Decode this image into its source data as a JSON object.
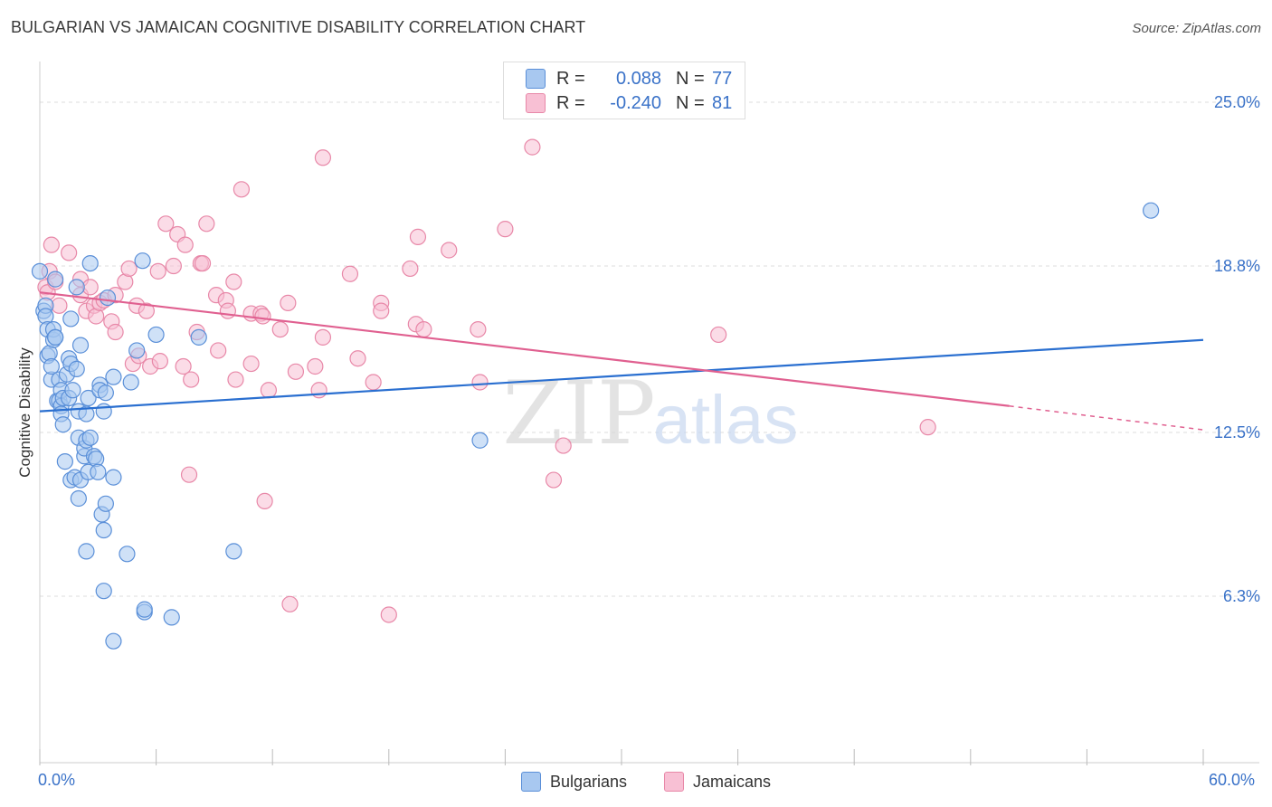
{
  "title": "BULGARIAN VS JAMAICAN COGNITIVE DISABILITY CORRELATION CHART",
  "source": "Source: ZipAtlas.com",
  "watermark": {
    "zip": "ZIP",
    "atlas": "atlas"
  },
  "legend": {
    "r_label": "R =",
    "n_label": "N =",
    "series": [
      {
        "name": "Bulgarians",
        "r": "0.088",
        "n": "77"
      },
      {
        "name": "Jamaicans",
        "r": "-0.240",
        "n": "81"
      }
    ]
  },
  "colors": {
    "blue_fill": "#a8c8f0",
    "blue_stroke": "#5a8fd8",
    "blue_line": "#2a6fd0",
    "pink_fill": "#f8c0d4",
    "pink_stroke": "#e888a8",
    "pink_line": "#e06090",
    "value_text": "#3a72c8",
    "grid": "#dddddd"
  },
  "chart_data": {
    "type": "scatter",
    "title": "BULGARIAN VS JAMAICAN COGNITIVE DISABILITY CORRELATION CHART",
    "xlabel": "",
    "ylabel": "Cognitive Disability",
    "xlim": [
      0,
      60
    ],
    "ylim": [
      0,
      26.3
    ],
    "x_tick_labels": [
      "0.0%",
      "60.0%"
    ],
    "y_ticks": [
      6.3,
      12.5,
      18.8,
      25.0
    ],
    "y_tick_labels": [
      "6.3%",
      "12.5%",
      "18.8%",
      "25.0%"
    ],
    "series": [
      {
        "name": "Bulgarians",
        "trend": {
          "x": [
            0,
            60
          ],
          "y": [
            13.3,
            16.0
          ]
        },
        "points": [
          [
            0.0,
            18.6
          ],
          [
            0.2,
            17.1
          ],
          [
            0.3,
            17.3
          ],
          [
            0.3,
            16.9
          ],
          [
            0.4,
            16.4
          ],
          [
            0.4,
            15.4
          ],
          [
            0.5,
            15.5
          ],
          [
            0.6,
            14.5
          ],
          [
            0.6,
            15.0
          ],
          [
            0.7,
            16.0
          ],
          [
            0.7,
            16.4
          ],
          [
            0.8,
            16.1
          ],
          [
            0.8,
            18.3
          ],
          [
            0.8,
            16.1
          ],
          [
            0.9,
            13.7
          ],
          [
            1.0,
            14.5
          ],
          [
            1.0,
            13.7
          ],
          [
            1.1,
            13.5
          ],
          [
            1.1,
            13.2
          ],
          [
            1.1,
            14.1
          ],
          [
            1.2,
            12.8
          ],
          [
            1.2,
            13.8
          ],
          [
            1.3,
            11.4
          ],
          [
            1.4,
            14.7
          ],
          [
            1.5,
            13.8
          ],
          [
            1.5,
            15.3
          ],
          [
            1.6,
            16.8
          ],
          [
            1.6,
            15.1
          ],
          [
            1.6,
            10.7
          ],
          [
            1.7,
            14.1
          ],
          [
            1.8,
            10.8
          ],
          [
            1.9,
            14.9
          ],
          [
            1.9,
            18.0
          ],
          [
            2.0,
            13.3
          ],
          [
            2.0,
            12.3
          ],
          [
            2.0,
            10.0
          ],
          [
            2.1,
            10.7
          ],
          [
            2.1,
            15.8
          ],
          [
            2.3,
            11.6
          ],
          [
            2.3,
            11.9
          ],
          [
            2.4,
            8.0
          ],
          [
            2.4,
            13.2
          ],
          [
            2.4,
            12.2
          ],
          [
            2.5,
            11.0
          ],
          [
            2.5,
            13.8
          ],
          [
            2.6,
            18.9
          ],
          [
            2.6,
            12.3
          ],
          [
            2.8,
            11.6
          ],
          [
            2.9,
            11.5
          ],
          [
            3.0,
            11.0
          ],
          [
            3.1,
            14.3
          ],
          [
            3.1,
            14.1
          ],
          [
            3.2,
            9.4
          ],
          [
            3.3,
            13.3
          ],
          [
            3.3,
            8.8
          ],
          [
            3.3,
            6.5
          ],
          [
            3.4,
            9.8
          ],
          [
            3.4,
            14.0
          ],
          [
            3.5,
            17.6
          ],
          [
            3.8,
            10.8
          ],
          [
            3.8,
            14.6
          ],
          [
            3.8,
            4.6
          ],
          [
            4.5,
            7.9
          ],
          [
            4.7,
            14.4
          ],
          [
            5.0,
            15.6
          ],
          [
            5.3,
            19.0
          ],
          [
            5.4,
            5.7
          ],
          [
            5.4,
            5.8
          ],
          [
            6.0,
            16.2
          ],
          [
            6.8,
            5.5
          ],
          [
            8.2,
            16.1
          ],
          [
            10.0,
            8.0
          ],
          [
            22.7,
            12.2
          ],
          [
            57.3,
            20.9
          ]
        ]
      },
      {
        "name": "Jamaicans",
        "trend": {
          "x": [
            0,
            50
          ],
          "y": [
            17.8,
            13.5
          ]
        },
        "trend_dashed": {
          "x": [
            50,
            60
          ],
          "y": [
            13.5,
            12.6
          ]
        },
        "points": [
          [
            0.3,
            18.0
          ],
          [
            0.4,
            17.8
          ],
          [
            0.5,
            18.6
          ],
          [
            0.6,
            19.6
          ],
          [
            0.8,
            18.2
          ],
          [
            1.0,
            17.3
          ],
          [
            1.5,
            19.3
          ],
          [
            2.1,
            18.3
          ],
          [
            2.1,
            17.7
          ],
          [
            2.4,
            17.1
          ],
          [
            2.6,
            18.0
          ],
          [
            2.8,
            17.3
          ],
          [
            2.9,
            16.9
          ],
          [
            3.1,
            17.4
          ],
          [
            3.3,
            17.5
          ],
          [
            3.7,
            16.7
          ],
          [
            3.9,
            17.7
          ],
          [
            3.9,
            16.3
          ],
          [
            4.4,
            18.2
          ],
          [
            4.6,
            18.7
          ],
          [
            4.8,
            15.1
          ],
          [
            5.0,
            17.3
          ],
          [
            5.1,
            15.4
          ],
          [
            5.5,
            17.1
          ],
          [
            5.7,
            15.0
          ],
          [
            6.1,
            18.6
          ],
          [
            6.2,
            15.2
          ],
          [
            6.5,
            20.4
          ],
          [
            6.9,
            18.8
          ],
          [
            7.1,
            20.0
          ],
          [
            7.4,
            15.0
          ],
          [
            7.5,
            19.6
          ],
          [
            7.7,
            10.9
          ],
          [
            7.8,
            14.5
          ],
          [
            8.1,
            16.3
          ],
          [
            8.3,
            18.9
          ],
          [
            8.4,
            18.9
          ],
          [
            8.6,
            20.4
          ],
          [
            9.1,
            17.7
          ],
          [
            9.2,
            15.6
          ],
          [
            9.6,
            17.5
          ],
          [
            9.7,
            17.1
          ],
          [
            10.0,
            18.2
          ],
          [
            10.1,
            14.5
          ],
          [
            10.4,
            21.7
          ],
          [
            10.9,
            17.0
          ],
          [
            10.9,
            15.1
          ],
          [
            11.4,
            17.0
          ],
          [
            11.5,
            16.9
          ],
          [
            11.6,
            9.9
          ],
          [
            11.8,
            14.1
          ],
          [
            12.4,
            16.4
          ],
          [
            12.8,
            17.4
          ],
          [
            12.9,
            6.0
          ],
          [
            13.2,
            14.8
          ],
          [
            14.2,
            15.0
          ],
          [
            14.4,
            14.1
          ],
          [
            14.6,
            16.1
          ],
          [
            14.6,
            22.9
          ],
          [
            16.0,
            18.5
          ],
          [
            16.4,
            15.3
          ],
          [
            17.2,
            14.4
          ],
          [
            17.6,
            17.4
          ],
          [
            17.6,
            17.1
          ],
          [
            18.0,
            5.6
          ],
          [
            19.1,
            18.7
          ],
          [
            19.4,
            16.6
          ],
          [
            19.5,
            19.9
          ],
          [
            19.8,
            16.4
          ],
          [
            21.1,
            19.4
          ],
          [
            22.6,
            16.4
          ],
          [
            22.7,
            14.4
          ],
          [
            24.0,
            20.2
          ],
          [
            25.4,
            23.3
          ],
          [
            26.5,
            10.7
          ],
          [
            27.0,
            12.0
          ],
          [
            35.0,
            16.2
          ],
          [
            45.8,
            12.7
          ]
        ]
      }
    ]
  }
}
